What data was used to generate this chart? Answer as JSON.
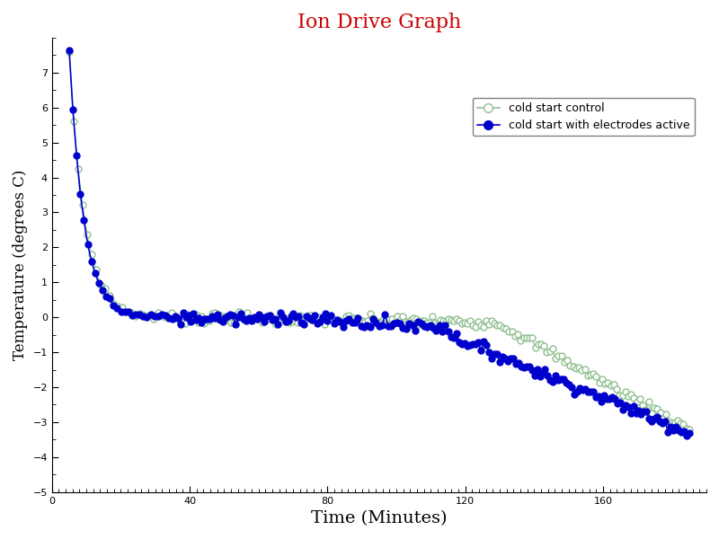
{
  "title": "Ion Drive Graph",
  "title_color": "#cc0000",
  "xlabel": "Time (Minutes)",
  "ylabel": "Temperature (degrees C)",
  "xlim": [
    0,
    190
  ],
  "ylim": [
    -5,
    8
  ],
  "yticks": [
    -5,
    -4,
    -3,
    -2,
    -1,
    0,
    1,
    2,
    3,
    4,
    5,
    6,
    7
  ],
  "xticks": [
    0,
    40,
    80,
    120,
    160
  ],
  "x_minor_interval": 2,
  "y_minor_interval": 0.5,
  "control_color": "#90c090",
  "electrode_color": "#0000cc",
  "legend_label_control": "cold start control",
  "legend_label_electrode": "cold start with electrodes active",
  "background_color": "#ffffff",
  "figsize": [
    8.0,
    6.0
  ],
  "dpi": 100
}
